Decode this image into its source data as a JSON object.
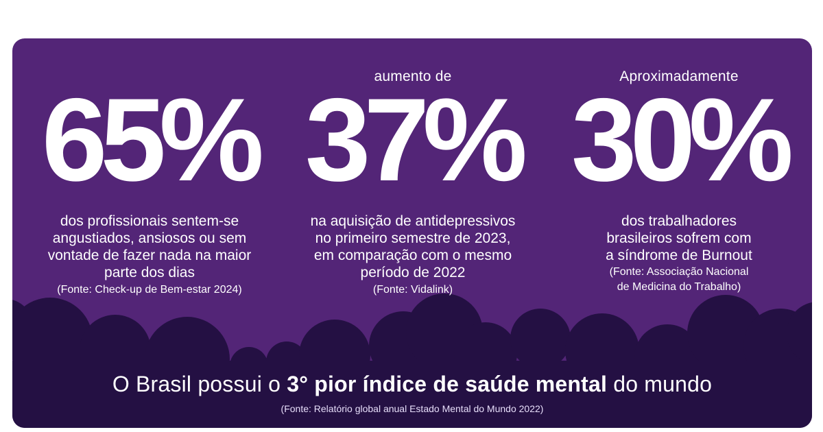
{
  "colors": {
    "card_bg": "#532577",
    "cloud_dark": "#241043",
    "text": "#ffffff"
  },
  "stats": [
    {
      "prefix": "",
      "value": "65%",
      "desc_lines": [
        "dos profissionais sentem-se",
        "angustiados, ansiosos ou sem",
        "vontade de fazer nada na maior",
        "parte dos dias"
      ],
      "source_lines": [
        "(Fonte: Check-up de Bem-estar 2024)"
      ]
    },
    {
      "prefix": "aumento de",
      "value": "37%",
      "desc_lines": [
        "na aquisição de antidepressivos",
        "no primeiro semestre de 2023,",
        "em comparação com o mesmo",
        "período de 2022"
      ],
      "source_lines": [
        "(Fonte: Vidalink)"
      ]
    },
    {
      "prefix": "Aproximadamente",
      "value": "30%",
      "desc_lines": [
        "dos trabalhadores",
        "brasileiros sofrem com",
        "a síndrome de Burnout"
      ],
      "source_lines": [
        "(Fonte: Associação Nacional",
        "de Medicina do Trabalho)"
      ]
    }
  ],
  "headline": {
    "before": "O Brasil possui o ",
    "bold": "3° pior índice de saúde mental",
    "after": " do mundo"
  },
  "headline_source": "(Fonte: Relatório global anual Estado Mental do Mundo 2022)"
}
